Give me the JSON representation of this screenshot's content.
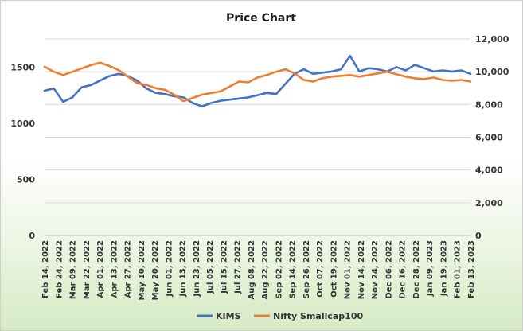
{
  "chart_data": {
    "type": "line",
    "title": "Price Chart",
    "xlabel": "",
    "ylabel": "",
    "y_left": {
      "lim": [
        0,
        1750
      ],
      "ticks": [
        0,
        500,
        1000,
        1500
      ],
      "tick_labels": [
        "0",
        "500",
        "1000",
        "1500"
      ]
    },
    "y_right": {
      "lim": [
        0,
        12000
      ],
      "ticks": [
        0,
        2000,
        4000,
        6000,
        8000,
        10000,
        12000
      ],
      "tick_labels": [
        "0",
        "2,000",
        "4,000",
        "6,000",
        "8,000",
        "10,000",
        "12,000"
      ]
    },
    "x_tick_labels": [
      "Feb 14, 2022",
      "Feb 24, 2022",
      "Mar 09, 2022",
      "Mar 22, 2022",
      "Apr 01, 2022",
      "Apr 13, 2022",
      "Apr 27, 2022",
      "May 10, 2022",
      "May 20, 2022",
      "Jun 01, 2022",
      "Jun 13, 2022",
      "Jun 23, 2022",
      "Jul 05, 2022",
      "Jul 15, 2022",
      "Jul 27, 2022",
      "Aug 08, 2022",
      "Aug 22, 2022",
      "Sep 02, 2022",
      "Sep 14, 2022",
      "Sep 26, 2022",
      "Oct 07, 2022",
      "Oct 19, 2022",
      "Nov 01, 2022",
      "Nov 14, 2022",
      "Nov 24, 2022",
      "Dec 06, 2022",
      "Dec 16, 2022",
      "Dec 28, 2022",
      "Jan 09, 2023",
      "Jan 19, 2023",
      "Feb 01, 2023",
      "Feb 13, 2023"
    ],
    "grid": "horizontal",
    "legend_position": "bottom",
    "series": [
      {
        "name": "KIMS",
        "axis": "left",
        "color": "#4472C4",
        "values": [
          1290,
          1310,
          1190,
          1230,
          1320,
          1340,
          1380,
          1420,
          1440,
          1420,
          1380,
          1310,
          1270,
          1260,
          1240,
          1230,
          1180,
          1150,
          1180,
          1200,
          1210,
          1220,
          1230,
          1250,
          1270,
          1260,
          1350,
          1440,
          1480,
          1440,
          1450,
          1460,
          1480,
          1600,
          1460,
          1490,
          1480,
          1460,
          1500,
          1470,
          1520,
          1490,
          1460,
          1470,
          1460,
          1470,
          1440
        ]
      },
      {
        "name": "Nifty Smallcap100",
        "axis": "right",
        "color": "#ED7D31",
        "values": [
          10300,
          10000,
          9800,
          10000,
          10200,
          10400,
          10550,
          10350,
          10100,
          9700,
          9300,
          9200,
          9000,
          8900,
          8600,
          8200,
          8400,
          8600,
          8700,
          8800,
          9100,
          9400,
          9350,
          9650,
          9800,
          10000,
          10150,
          9900,
          9500,
          9400,
          9600,
          9700,
          9750,
          9800,
          9700,
          9800,
          9900,
          10000,
          9850,
          9700,
          9600,
          9550,
          9650,
          9500,
          9450,
          9500,
          9400
        ]
      }
    ]
  }
}
